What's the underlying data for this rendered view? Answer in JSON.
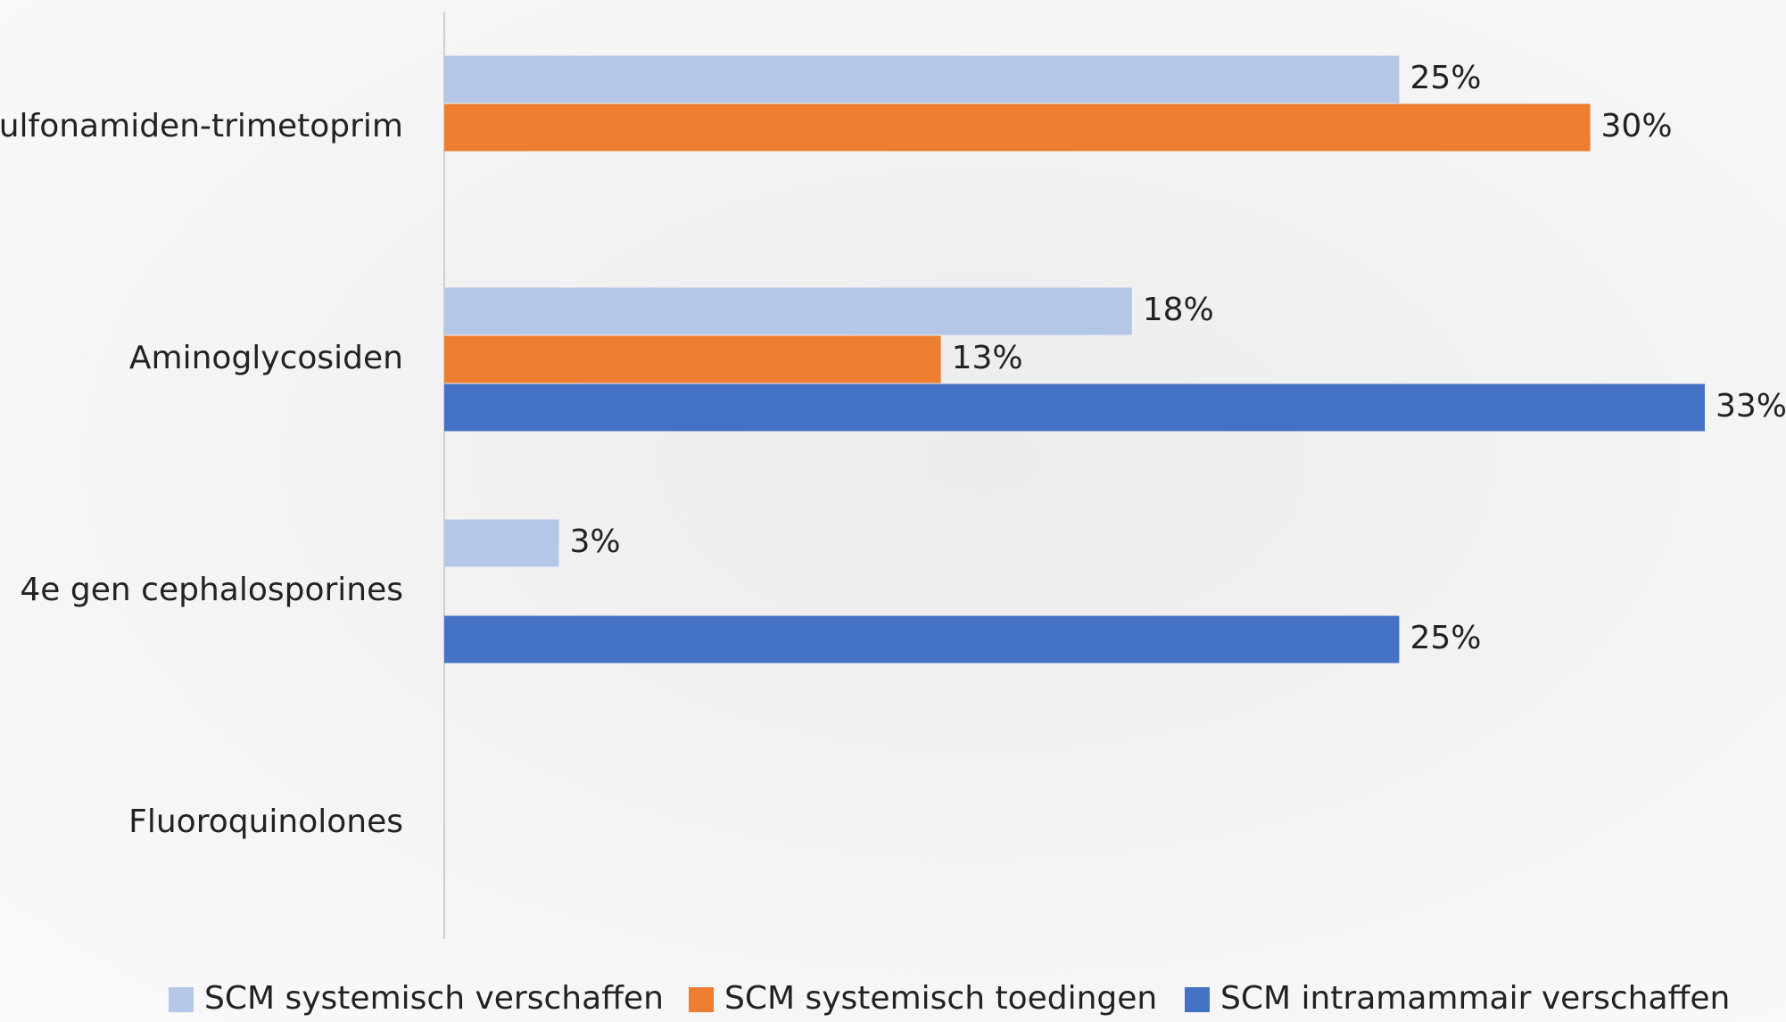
{
  "chart_data": {
    "type": "bar",
    "orientation": "horizontal",
    "categories": [
      "Sulfonamiden-trimetoprim",
      "Aminoglycosiden",
      "4e gen cephalosporines",
      "Fluoroquinolones"
    ],
    "series": [
      {
        "name": "SCM systemisch verschaffen",
        "color": "#b4c7e7",
        "values": [
          25,
          18,
          3,
          null
        ],
        "value_labels": [
          "25%",
          "18%",
          "3%",
          null
        ]
      },
      {
        "name": "SCM systemisch toedingen",
        "color": "#ed7d31",
        "values": [
          30,
          13,
          null,
          null
        ],
        "value_labels": [
          "30%",
          "13%",
          null,
          null
        ]
      },
      {
        "name": "SCM intramammair verschaffen",
        "color": "#4472c4",
        "values": [
          null,
          33,
          25,
          null
        ],
        "value_labels": [
          null,
          "33%",
          "25%",
          null
        ]
      }
    ],
    "legend": "bottom"
  }
}
